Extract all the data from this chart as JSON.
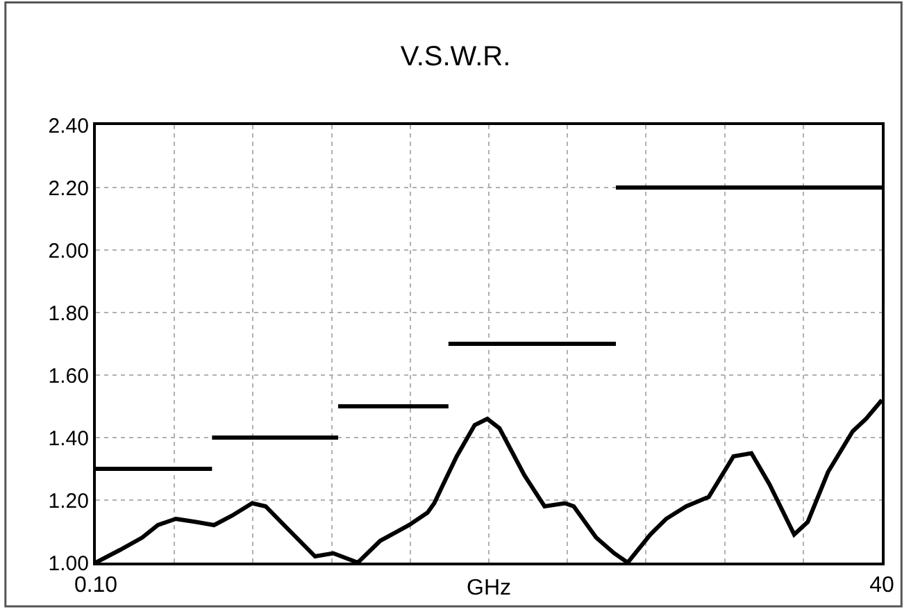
{
  "chart_data": {
    "type": "line",
    "title": "V.S.W.R.",
    "xlabel": "GHz",
    "xlim": [
      0.1,
      40
    ],
    "ylim": [
      1.0,
      2.4
    ],
    "xticks": [
      {
        "value": 0.1,
        "label": "0.10"
      },
      {
        "value": 4.09,
        "label": null
      },
      {
        "value": 8.08,
        "label": null
      },
      {
        "value": 12.07,
        "label": null
      },
      {
        "value": 16.06,
        "label": null
      },
      {
        "value": 20.05,
        "label": null
      },
      {
        "value": 24.04,
        "label": null
      },
      {
        "value": 28.03,
        "label": null
      },
      {
        "value": 32.02,
        "label": null
      },
      {
        "value": 36.01,
        "label": null
      },
      40
    ],
    "yticks": [
      {
        "value": 1.0,
        "label": "1.00"
      },
      {
        "value": 1.2,
        "label": "1.20"
      },
      {
        "value": 1.4,
        "label": "1.40"
      },
      {
        "value": 1.6,
        "label": "1.60"
      },
      {
        "value": 1.8,
        "label": "1.80"
      },
      {
        "value": 2.0,
        "label": "2.00"
      },
      {
        "value": 2.2,
        "label": "2.20"
      },
      {
        "value": 2.4,
        "label": "2.40"
      }
    ],
    "grid": true,
    "marker": "none",
    "line_style": "solid",
    "series": [
      {
        "color": "#000000",
        "x": [
          0.1,
          1.31,
          2.45,
          3.25,
          4.16,
          5.19,
          6.1,
          7.01,
          8.04,
          8.72,
          9.97,
          11.23,
          12.15,
          13.4,
          14.54,
          16.0,
          16.94,
          17.28,
          17.73,
          18.42,
          19.33,
          19.97,
          20.59,
          21.85,
          22.88,
          23.91,
          24.36,
          25.5,
          26.41,
          27.1,
          28.25,
          29.05,
          30.07,
          31.21,
          32.47,
          33.38,
          34.3,
          35.55,
          36.24,
          37.27,
          38.52,
          39.2,
          40
        ],
        "values": [
          1.0,
          1.04,
          1.08,
          1.12,
          1.14,
          1.13,
          1.12,
          1.15,
          1.19,
          1.18,
          1.1,
          1.02,
          1.03,
          1.0,
          1.07,
          1.12,
          1.16,
          1.19,
          1.25,
          1.34,
          1.44,
          1.46,
          1.43,
          1.28,
          1.18,
          1.19,
          1.18,
          1.08,
          1.03,
          1.0,
          1.09,
          1.14,
          1.18,
          1.21,
          1.34,
          1.35,
          1.25,
          1.09,
          1.13,
          1.29,
          1.42,
          1.46,
          1.52
        ]
      },
      {
        "color": "#000000",
        "x": [
          0.1,
          6
        ],
        "values": [
          1.3,
          1.3
        ]
      },
      {
        "color": "#000000",
        "x": [
          6,
          12.4
        ],
        "values": [
          1.4,
          1.4
        ]
      },
      {
        "color": "#000000",
        "x": [
          12.4,
          18
        ],
        "values": [
          1.5,
          1.5
        ]
      },
      {
        "color": "#000000",
        "x": [
          18,
          26.5
        ],
        "values": [
          1.7,
          1.7
        ]
      },
      {
        "color": "#000000",
        "x": [
          26.5,
          40
        ],
        "values": [
          2.2,
          2.2
        ]
      }
    ]
  }
}
